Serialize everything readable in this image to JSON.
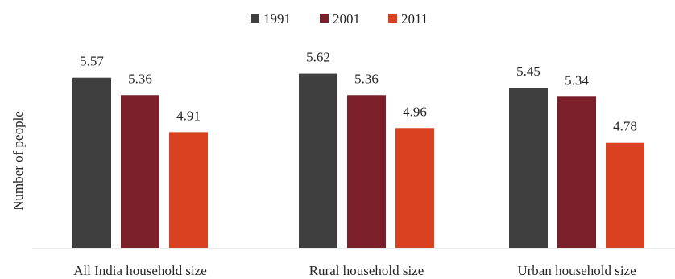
{
  "chart_data": {
    "type": "bar",
    "categories": [
      "All India household size",
      "Rural household size",
      "Urban household size"
    ],
    "series": [
      {
        "name": "1991",
        "color": "#3f3f3f",
        "values": [
          5.57,
          5.62,
          5.45
        ]
      },
      {
        "name": "2001",
        "color": "#7b1f2b",
        "values": [
          5.36,
          5.36,
          5.34
        ]
      },
      {
        "name": "2011",
        "color": "#d94121",
        "values": [
          4.91,
          4.96,
          4.78
        ]
      }
    ],
    "title": "",
    "xlabel": "",
    "ylabel": "Number of people",
    "ylim": [
      3.5,
      5.85
    ],
    "grid": false,
    "legend": "top-center",
    "data_labels": true
  }
}
